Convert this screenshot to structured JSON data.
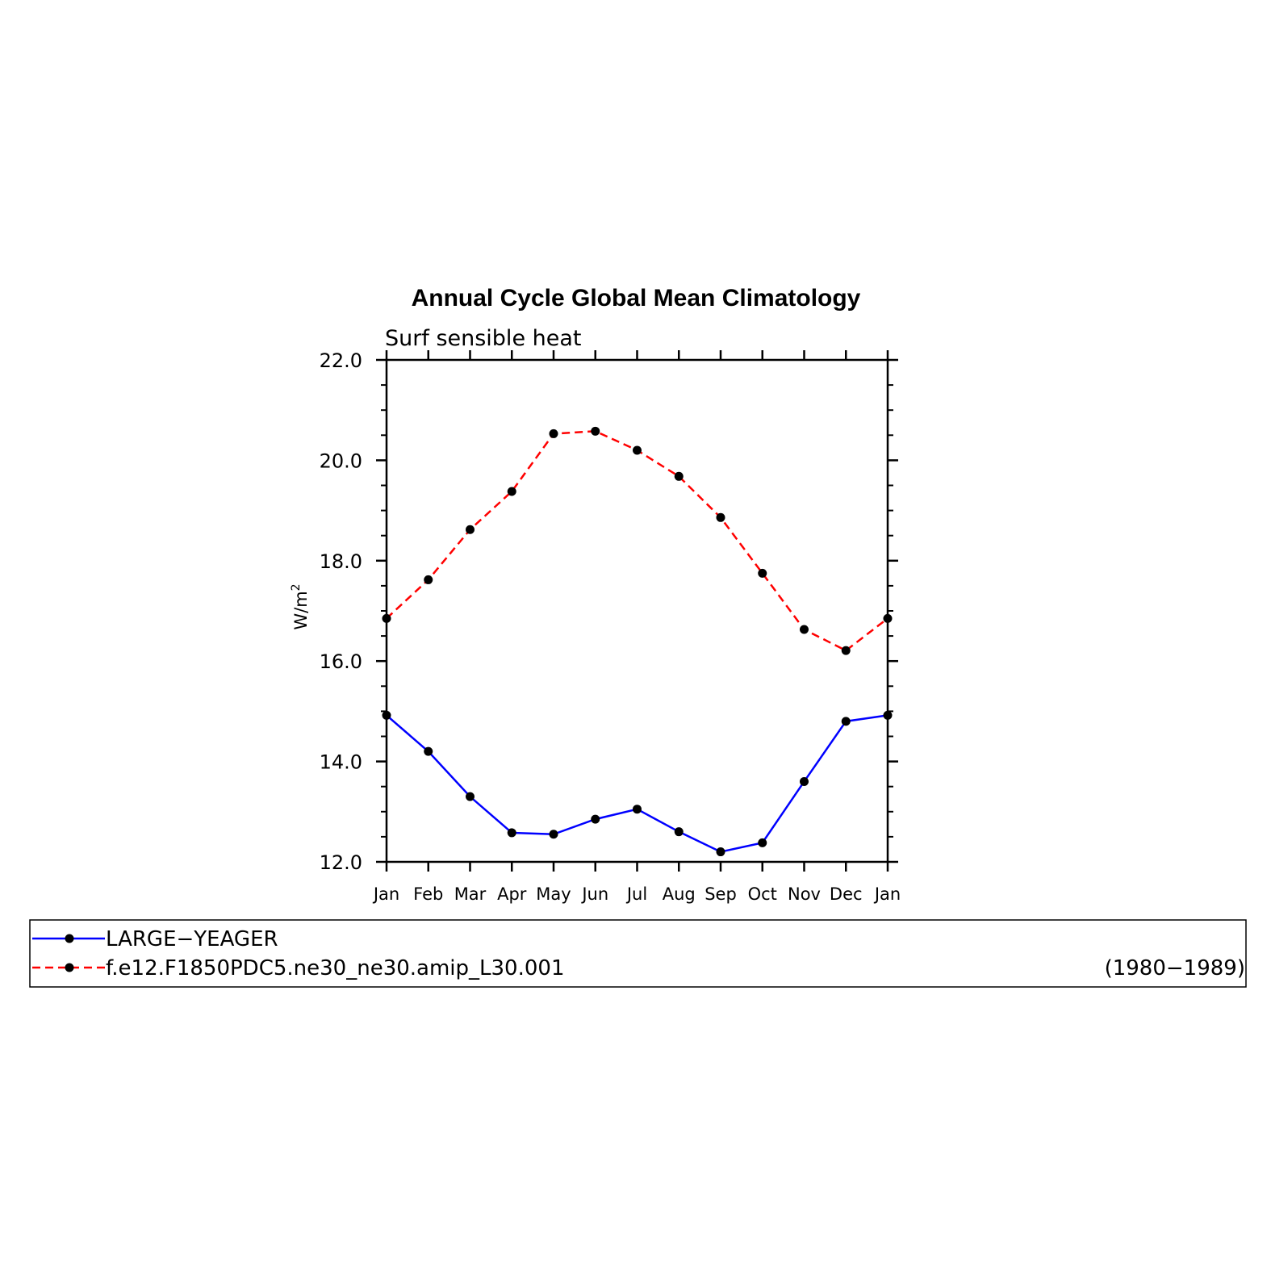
{
  "chart_data": {
    "type": "line",
    "title": "Annual Cycle Global Mean Climatology",
    "subtitle": "Surf  sensible  heat",
    "ylabel_main": "W/m",
    "ylabel_sup": "2",
    "xlabel": "",
    "ylim": [
      12.0,
      22.0
    ],
    "y_ticks": [
      "12.0",
      "14.0",
      "16.0",
      "18.0",
      "20.0",
      "22.0"
    ],
    "y_tick_values": [
      12,
      14,
      16,
      18,
      20,
      22
    ],
    "categories": [
      "Jan",
      "Feb",
      "Mar",
      "Apr",
      "May",
      "Jun",
      "Jul",
      "Aug",
      "Sep",
      "Oct",
      "Nov",
      "Dec",
      "Jan"
    ],
    "grid": false,
    "legend_position": "bottom",
    "series": [
      {
        "name": "LARGE−YEAGER",
        "color": "#0000ff",
        "dash": "solid",
        "marker": "dot",
        "values": [
          14.92,
          14.2,
          13.3,
          12.58,
          12.55,
          12.85,
          13.05,
          12.6,
          12.2,
          12.38,
          13.6,
          14.8,
          14.92
        ]
      },
      {
        "name": "f.e12.F1850PDC5.ne30_ne30.amip_L30.001",
        "color": "#ff0000",
        "dash": "dashed",
        "marker": "dot",
        "values": [
          16.85,
          17.62,
          18.62,
          19.38,
          20.53,
          20.58,
          20.2,
          19.68,
          18.86,
          17.75,
          16.63,
          16.21,
          16.85
        ]
      }
    ],
    "legend_note": "(1980−1989)"
  }
}
